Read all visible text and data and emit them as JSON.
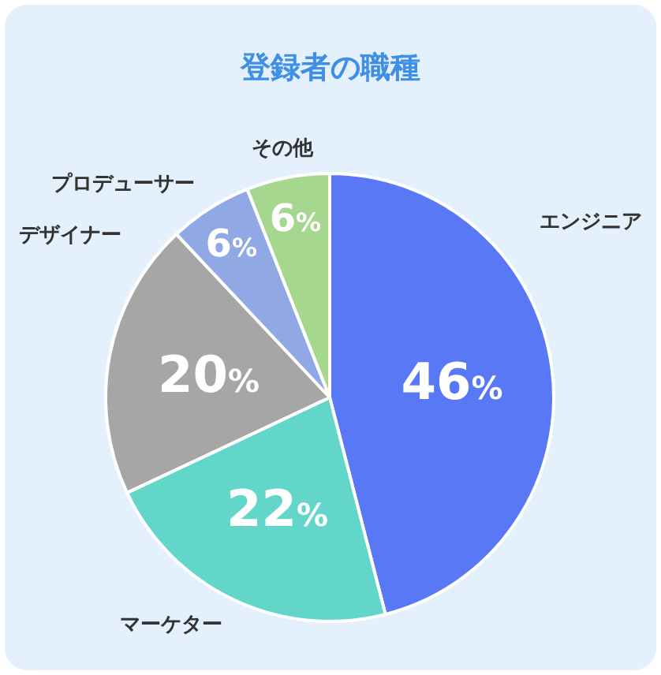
{
  "chart_data": {
    "type": "pie",
    "title": "登録者の職種",
    "categories": [
      "エンジニア",
      "マーケター",
      "デザイナー",
      "プロデューサー",
      "その他"
    ],
    "values": [
      46,
      22,
      20,
      6,
      6
    ],
    "colors": [
      "#5878f6",
      "#62d6c8",
      "#a6a6a6",
      "#90a8e4",
      "#a6d78e"
    ],
    "value_labels": [
      "46%",
      "22%",
      "20%",
      "6%",
      "6%"
    ]
  }
}
